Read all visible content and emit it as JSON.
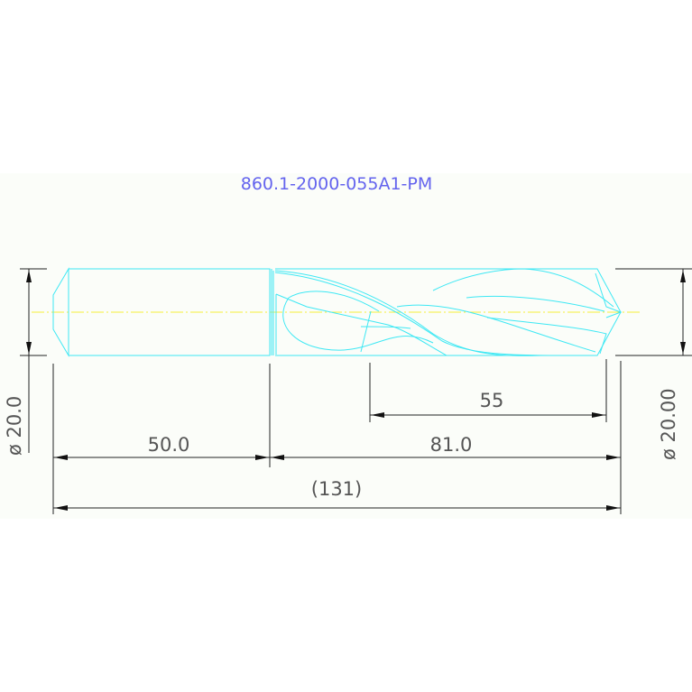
{
  "title": "860.1-2000-055A1-PM",
  "dimensions": {
    "shank_diameter": "ø 20.0",
    "body_diameter": "ø 20.00",
    "shank_length": "50.0",
    "body_length": "81.0",
    "flute_length": "55",
    "overall_length": "(131)"
  },
  "colors": {
    "outline": "#3ee8f4",
    "centerline": "#f4f03a",
    "title": "#6464ee",
    "dimensions": "#222222"
  }
}
